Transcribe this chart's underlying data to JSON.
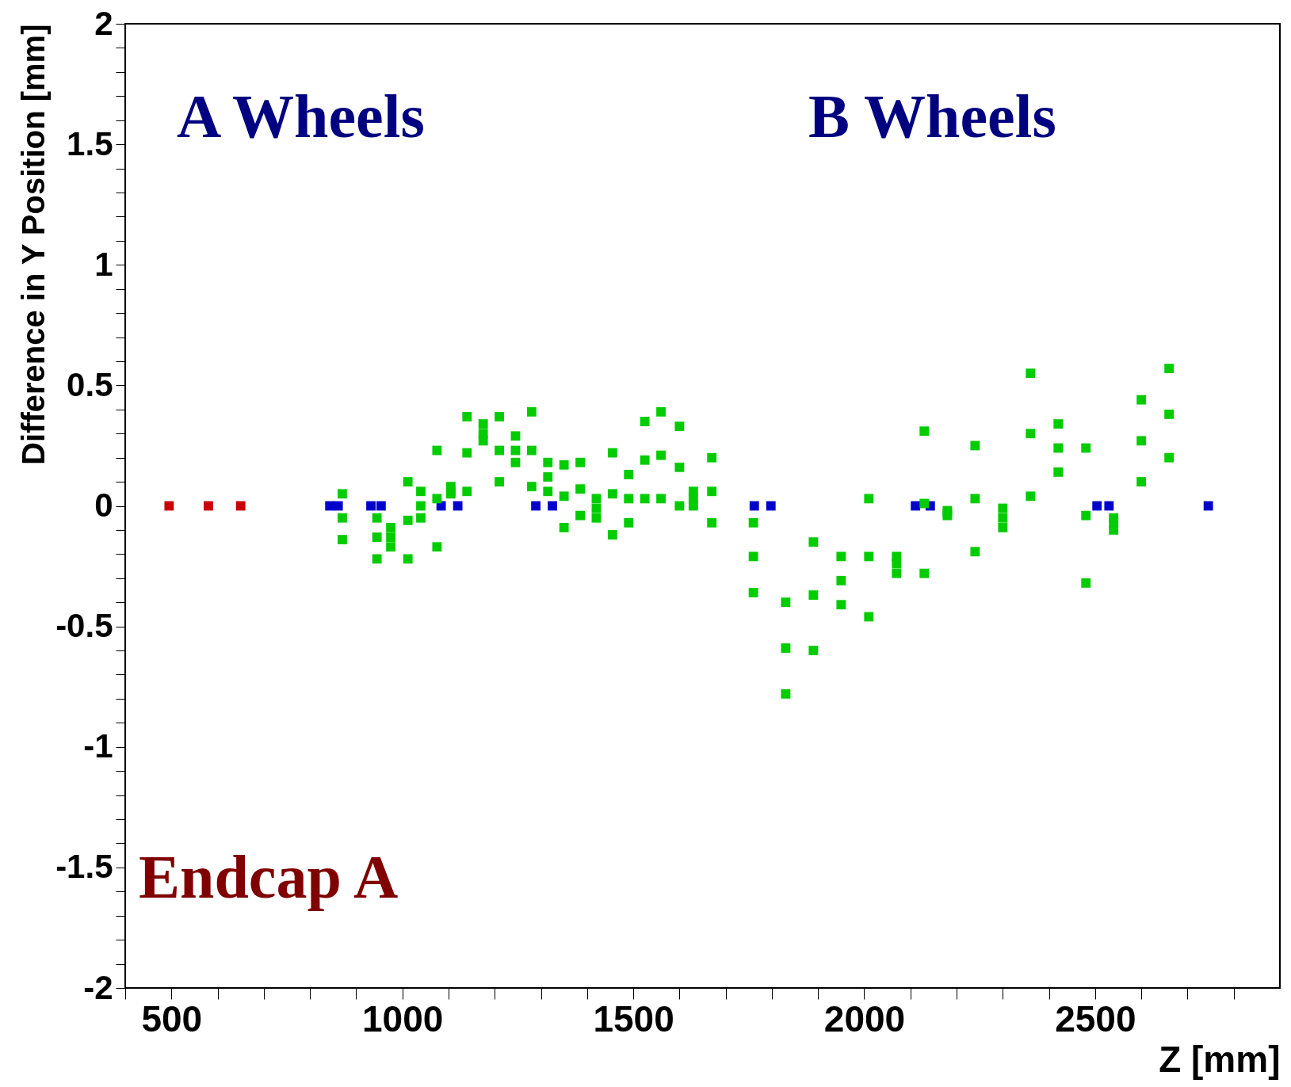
{
  "chart_data": {
    "type": "scatter",
    "xlabel": "Z [mm]",
    "ylabel": "Difference in Y Position [mm]",
    "annotations": [
      "A Wheels",
      "B Wheels",
      "Endcap A"
    ],
    "xlim": [
      400,
      2900
    ],
    "ylim": [
      -2,
      2
    ],
    "xticks": [
      {
        "value": 400,
        "label": null
      },
      500,
      {
        "value": 600,
        "label": null
      },
      {
        "value": 700,
        "label": null
      },
      {
        "value": 800,
        "label": null
      },
      {
        "value": 900,
        "label": null
      },
      1000,
      {
        "value": 1100,
        "label": null
      },
      {
        "value": 1200,
        "label": null
      },
      {
        "value": 1300,
        "label": null
      },
      {
        "value": 1400,
        "label": null
      },
      1500,
      {
        "value": 1600,
        "label": null
      },
      {
        "value": 1700,
        "label": null
      },
      {
        "value": 1800,
        "label": null
      },
      {
        "value": 1900,
        "label": null
      },
      2000,
      {
        "value": 2100,
        "label": null
      },
      {
        "value": 2200,
        "label": null
      },
      {
        "value": 2300,
        "label": null
      },
      {
        "value": 2400,
        "label": null
      },
      2500,
      {
        "value": 2600,
        "label": null
      },
      {
        "value": 2700,
        "label": null
      },
      {
        "value": 2800,
        "label": null
      }
    ],
    "yticks": [
      -2,
      {
        "value": -1.9,
        "label": null
      },
      {
        "value": -1.8,
        "label": null
      },
      {
        "value": -1.7,
        "label": null
      },
      {
        "value": -1.6,
        "label": null
      },
      -1.5,
      {
        "value": -1.4,
        "label": null
      },
      {
        "value": -1.3,
        "label": null
      },
      {
        "value": -1.2,
        "label": null
      },
      {
        "value": -1.1,
        "label": null
      },
      -1,
      {
        "value": -0.9,
        "label": null
      },
      {
        "value": -0.8,
        "label": null
      },
      {
        "value": -0.7,
        "label": null
      },
      {
        "value": -0.6,
        "label": null
      },
      -0.5,
      {
        "value": -0.4,
        "label": null
      },
      {
        "value": -0.3,
        "label": null
      },
      {
        "value": -0.2,
        "label": null
      },
      {
        "value": -0.1,
        "label": null
      },
      0,
      {
        "value": 0.1,
        "label": null
      },
      {
        "value": 0.2,
        "label": null
      },
      {
        "value": 0.3,
        "label": null
      },
      {
        "value": 0.4,
        "label": null
      },
      0.5,
      {
        "value": 0.6,
        "label": null
      },
      {
        "value": 0.7,
        "label": null
      },
      {
        "value": 0.8,
        "label": null
      },
      {
        "value": 0.9,
        "label": null
      },
      1,
      {
        "value": 1.1,
        "label": null
      },
      {
        "value": 1.2,
        "label": null
      },
      {
        "value": 1.3,
        "label": null
      },
      {
        "value": 1.4,
        "label": null
      },
      1.5,
      {
        "value": 1.6,
        "label": null
      },
      {
        "value": 1.7,
        "label": null
      },
      {
        "value": 1.8,
        "label": null
      },
      {
        "value": 1.9,
        "label": null
      },
      2
    ],
    "marker": "square",
    "legend": false,
    "grid": false,
    "series": [
      {
        "color": "#cc0000",
        "x": [
          495,
          580,
          650
        ],
        "values": [
          0,
          0,
          0
        ]
      },
      {
        "color": "#0000cc",
        "x": [
          843,
          861,
          932,
          954,
          1084,
          1120,
          1289,
          1325,
          1762,
          1798,
          2111,
          2143,
          2504,
          2530,
          2745
        ],
        "values": [
          0,
          0,
          0,
          0,
          0,
          0,
          0,
          0,
          0,
          0,
          0,
          0,
          0,
          0,
          0
        ]
      },
      {
        "color": "#00cc00",
        "x": [
          870,
          870,
          870,
          945,
          945,
          945,
          975,
          975,
          975,
          1012,
          1012,
          1012,
          1040,
          1040,
          1040,
          1075,
          1075,
          1075,
          1105,
          1105,
          1105,
          1140,
          1140,
          1140,
          1175,
          1175,
          1175,
          1210,
          1210,
          1210,
          1245,
          1245,
          1245,
          1280,
          1280,
          1280,
          1315,
          1315,
          1315,
          1350,
          1350,
          1350,
          1385,
          1385,
          1385,
          1420,
          1420,
          1420,
          1455,
          1455,
          1455,
          1490,
          1490,
          1490,
          1525,
          1525,
          1525,
          1560,
          1560,
          1560,
          1600,
          1600,
          1600,
          1630,
          1630,
          1630,
          1670,
          1670,
          1670,
          1760,
          1760,
          1760,
          1830,
          1830,
          1830,
          1890,
          1890,
          1890,
          1950,
          1950,
          1950,
          2010,
          2010,
          2010,
          2070,
          2070,
          2070,
          2130,
          2130,
          2130,
          2180,
          2180,
          2180,
          2240,
          2240,
          2240,
          2300,
          2300,
          2300,
          2360,
          2360,
          2360,
          2420,
          2420,
          2420,
          2480,
          2480,
          2480,
          2540,
          2540,
          2540,
          2600,
          2600,
          2600,
          2660,
          2660,
          2660
        ],
        "values": [
          0.05,
          -0.05,
          -0.14,
          -0.05,
          -0.13,
          -0.22,
          -0.09,
          -0.13,
          -0.17,
          0.1,
          -0.06,
          -0.22,
          0.06,
          0,
          -0.05,
          0.23,
          0.03,
          -0.17,
          0.08,
          0.06,
          0.05,
          0.37,
          0.22,
          0.06,
          0.34,
          0.3,
          0.27,
          0.37,
          0.23,
          0.1,
          0.29,
          0.23,
          0.18,
          0.39,
          0.23,
          0.08,
          0.18,
          0.12,
          0.06,
          0.17,
          0.04,
          -0.09,
          0.18,
          0.07,
          -0.04,
          0.03,
          -0.01,
          -0.05,
          0.22,
          0.05,
          -0.12,
          0.13,
          0.03,
          -0.07,
          0.35,
          0.19,
          0.03,
          0.39,
          0.21,
          0.03,
          0.33,
          0.16,
          0,
          0.06,
          0.03,
          0,
          0.2,
          0.06,
          -0.07,
          -0.07,
          -0.21,
          -0.36,
          -0.4,
          -0.59,
          -0.78,
          -0.15,
          -0.37,
          -0.6,
          -0.21,
          -0.31,
          -0.41,
          0.03,
          -0.21,
          -0.46,
          -0.21,
          -0.24,
          -0.28,
          0.31,
          0.01,
          -0.28,
          -0.02,
          -0.03,
          -0.04,
          0.25,
          0.03,
          -0.19,
          -0.01,
          -0.05,
          -0.09,
          0.55,
          0.3,
          0.04,
          0.34,
          0.24,
          0.14,
          0.24,
          -0.04,
          -0.32,
          -0.05,
          -0.07,
          -0.1,
          0.44,
          0.27,
          0.1,
          0.57,
          0.38,
          0.2
        ]
      }
    ]
  }
}
